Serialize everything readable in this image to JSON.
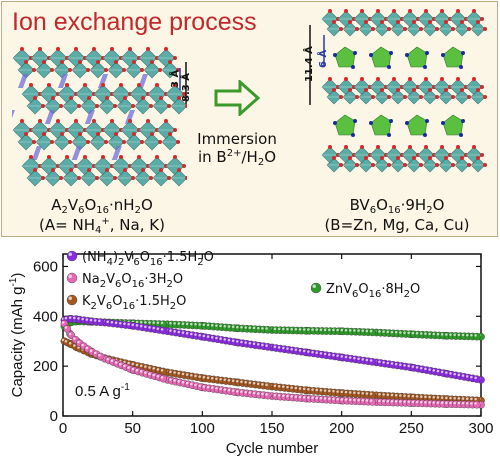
{
  "top_panel": {
    "title": "Ion exchange process",
    "left_structure": {
      "formula": [
        "A",
        "2",
        "V",
        "6",
        "O",
        "16",
        "·nH",
        "2",
        "O"
      ],
      "subtitle_pre": "(A= NH",
      "subtitle_sub": "4",
      "subtitle_sup": "+",
      "subtitle_post": ", Na, K)",
      "dim_small": "3 Å",
      "dim_large": "8.3 Å"
    },
    "right_structure": {
      "formula": [
        "BV",
        "6",
        "O",
        "16",
        "·9H",
        "2",
        "O"
      ],
      "subtitle": "(B=Zn, Mg, Ca, Cu)",
      "dim_large": "11.4 Å",
      "dim_small": "6 Å"
    },
    "process": {
      "line1": "Immersion",
      "line2_pre": "in B",
      "line2_sup": "2+",
      "line2_mid": "/H",
      "line2_sub": "2",
      "line2_post": "O"
    },
    "colors": {
      "polyhedra": "#4aa3a0",
      "oxygen": "#d42a2a",
      "zn_polyhedra": "#5bbf3f",
      "interlayer": "#6f6fd8",
      "arrow": "#3a9a2c",
      "title": "#c0282a"
    }
  },
  "chart_data": {
    "type": "scatter",
    "xlabel": "Cycle number",
    "ylabel_pre": "Capacity (mAh g",
    "ylabel_sup": "-1",
    "ylabel_post": ")",
    "xlim": [
      0,
      300
    ],
    "ylim": [
      0,
      650
    ],
    "xticks": [
      0,
      50,
      100,
      150,
      200,
      250,
      300
    ],
    "yticks": [
      0,
      200,
      400,
      600
    ],
    "annotation": {
      "pre": "0.5 A g",
      "sup": "-1"
    },
    "series": [
      {
        "name_parts": [
          [
            "(NH",
            ""
          ],
          [
            "4",
            "sub"
          ],
          [
            ")",
            ""
          ],
          [
            "2",
            "sub"
          ],
          [
            "V",
            ""
          ],
          [
            "6",
            "sub"
          ],
          [
            "O",
            ""
          ],
          [
            "16",
            "sub"
          ],
          [
            "·1.5H",
            ""
          ],
          [
            "2",
            "sub"
          ],
          [
            "O",
            ""
          ]
        ],
        "color": "#8a2be2",
        "x": [
          1,
          5,
          10,
          20,
          30,
          50,
          75,
          100,
          125,
          150,
          175,
          200,
          225,
          250,
          275,
          300
        ],
        "y": [
          385,
          390,
          388,
          380,
          375,
          362,
          340,
          318,
          295,
          275,
          255,
          235,
          215,
          195,
          170,
          145
        ]
      },
      {
        "name_parts": [
          [
            "Na",
            ""
          ],
          [
            "2",
            "sub"
          ],
          [
            "V",
            ""
          ],
          [
            "6",
            "sub"
          ],
          [
            "O",
            ""
          ],
          [
            "16",
            "sub"
          ],
          [
            "·3H",
            ""
          ],
          [
            "2",
            "sub"
          ],
          [
            "O",
            ""
          ]
        ],
        "color": "#e667b4",
        "x": [
          1,
          5,
          10,
          20,
          30,
          50,
          75,
          100,
          125,
          150,
          175,
          200,
          225,
          250,
          275,
          300
        ],
        "y": [
          370,
          330,
          300,
          260,
          230,
          185,
          145,
          115,
          95,
          80,
          70,
          62,
          56,
          52,
          48,
          45
        ]
      },
      {
        "name_parts": [
          [
            "K",
            ""
          ],
          [
            "2",
            "sub"
          ],
          [
            "V",
            ""
          ],
          [
            "6",
            "sub"
          ],
          [
            "O",
            ""
          ],
          [
            "16",
            "sub"
          ],
          [
            "·1.5H",
            ""
          ],
          [
            "2",
            "sub"
          ],
          [
            "O",
            ""
          ]
        ],
        "color": "#a4561f",
        "x": [
          1,
          5,
          10,
          20,
          30,
          50,
          75,
          100,
          125,
          150,
          175,
          200,
          225,
          250,
          275,
          300
        ],
        "y": [
          300,
          290,
          275,
          250,
          232,
          205,
          175,
          152,
          135,
          118,
          103,
          92,
          83,
          75,
          68,
          62
        ]
      },
      {
        "name_parts": [
          [
            "ZnV",
            ""
          ],
          [
            "6",
            "sub"
          ],
          [
            "O",
            ""
          ],
          [
            "16",
            "sub"
          ],
          [
            "·8H",
            ""
          ],
          [
            "2",
            "sub"
          ],
          [
            "O",
            ""
          ]
        ],
        "color": "#2e9a2a",
        "x": [
          1,
          5,
          10,
          20,
          30,
          50,
          75,
          100,
          125,
          150,
          175,
          200,
          225,
          250,
          275,
          300
        ],
        "y": [
          360,
          375,
          380,
          378,
          376,
          372,
          368,
          362,
          352,
          345,
          342,
          340,
          335,
          328,
          322,
          318
        ]
      }
    ]
  }
}
